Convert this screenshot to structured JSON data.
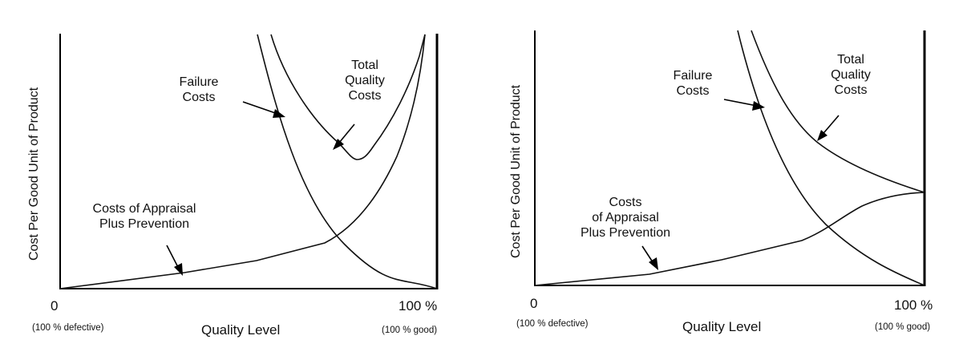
{
  "panels": [
    {
      "labels": {
        "failure": [
          "Failure",
          "Costs"
        ],
        "total": [
          "Total",
          "Quality",
          "Costs"
        ],
        "appraisal": [
          "Costs of Appraisal",
          "Plus Prevention"
        ]
      },
      "x_axis": {
        "title": "Quality Level",
        "min_tick": "0",
        "max_tick": "100 %",
        "min_note": "(100 % defective)",
        "max_note": "(100 % good)"
      },
      "y_axis": {
        "title": "Cost Per Good Unit of Product"
      }
    },
    {
      "labels": {
        "failure": [
          "Failure",
          "Costs"
        ],
        "total": [
          "Total",
          "Quality",
          "Costs"
        ],
        "appraisal": [
          "Costs",
          "of Appraisal",
          "Plus Prevention"
        ]
      },
      "x_axis": {
        "title": "Quality Level",
        "min_tick": "0",
        "max_tick": "100 %",
        "min_note": "(100 % defective)",
        "max_note": "(100 % good)"
      },
      "y_axis": {
        "title": "Cost Per Good Unit of Product"
      }
    }
  ]
}
